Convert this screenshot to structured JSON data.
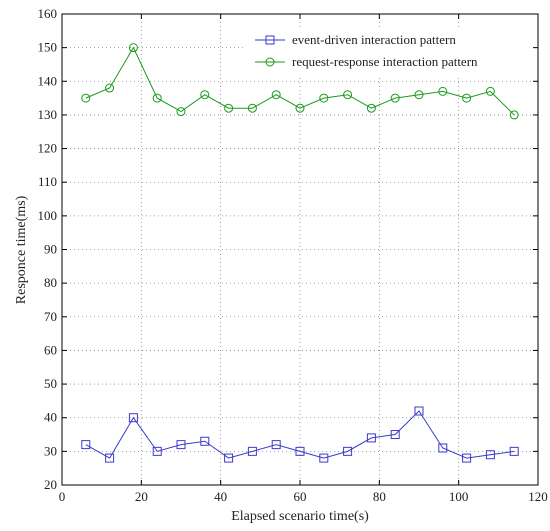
{
  "chart_data": {
    "type": "line",
    "title": "",
    "xlabel": "Elapsed scenario time(s)",
    "ylabel": "Responce time(ms)",
    "xlim": [
      0,
      120
    ],
    "ylim": [
      20,
      160
    ],
    "xticks": [
      0,
      20,
      40,
      60,
      80,
      100,
      120
    ],
    "yticks": [
      20,
      30,
      40,
      50,
      60,
      70,
      80,
      90,
      100,
      110,
      120,
      130,
      140,
      150,
      160
    ],
    "grid": true,
    "grid_style": "dotted",
    "legend_position": "top-right",
    "x": [
      6,
      12,
      18,
      24,
      30,
      36,
      42,
      48,
      54,
      60,
      66,
      72,
      78,
      84,
      90,
      96,
      102,
      108,
      114
    ],
    "series": [
      {
        "name": "event-driven interaction pattern",
        "color": "#3a3acc",
        "marker": "square",
        "values": [
          32,
          28,
          40,
          30,
          32,
          33,
          28,
          30,
          32,
          30,
          28,
          30,
          34,
          35,
          42,
          31,
          28,
          29,
          30
        ]
      },
      {
        "name": "request-response interaction pattern",
        "color": "#1a9a1a",
        "marker": "circle",
        "values": [
          135,
          138,
          150,
          135,
          131,
          136,
          132,
          132,
          136,
          132,
          135,
          136,
          132,
          135,
          136,
          137,
          135,
          137,
          130
        ]
      }
    ]
  }
}
